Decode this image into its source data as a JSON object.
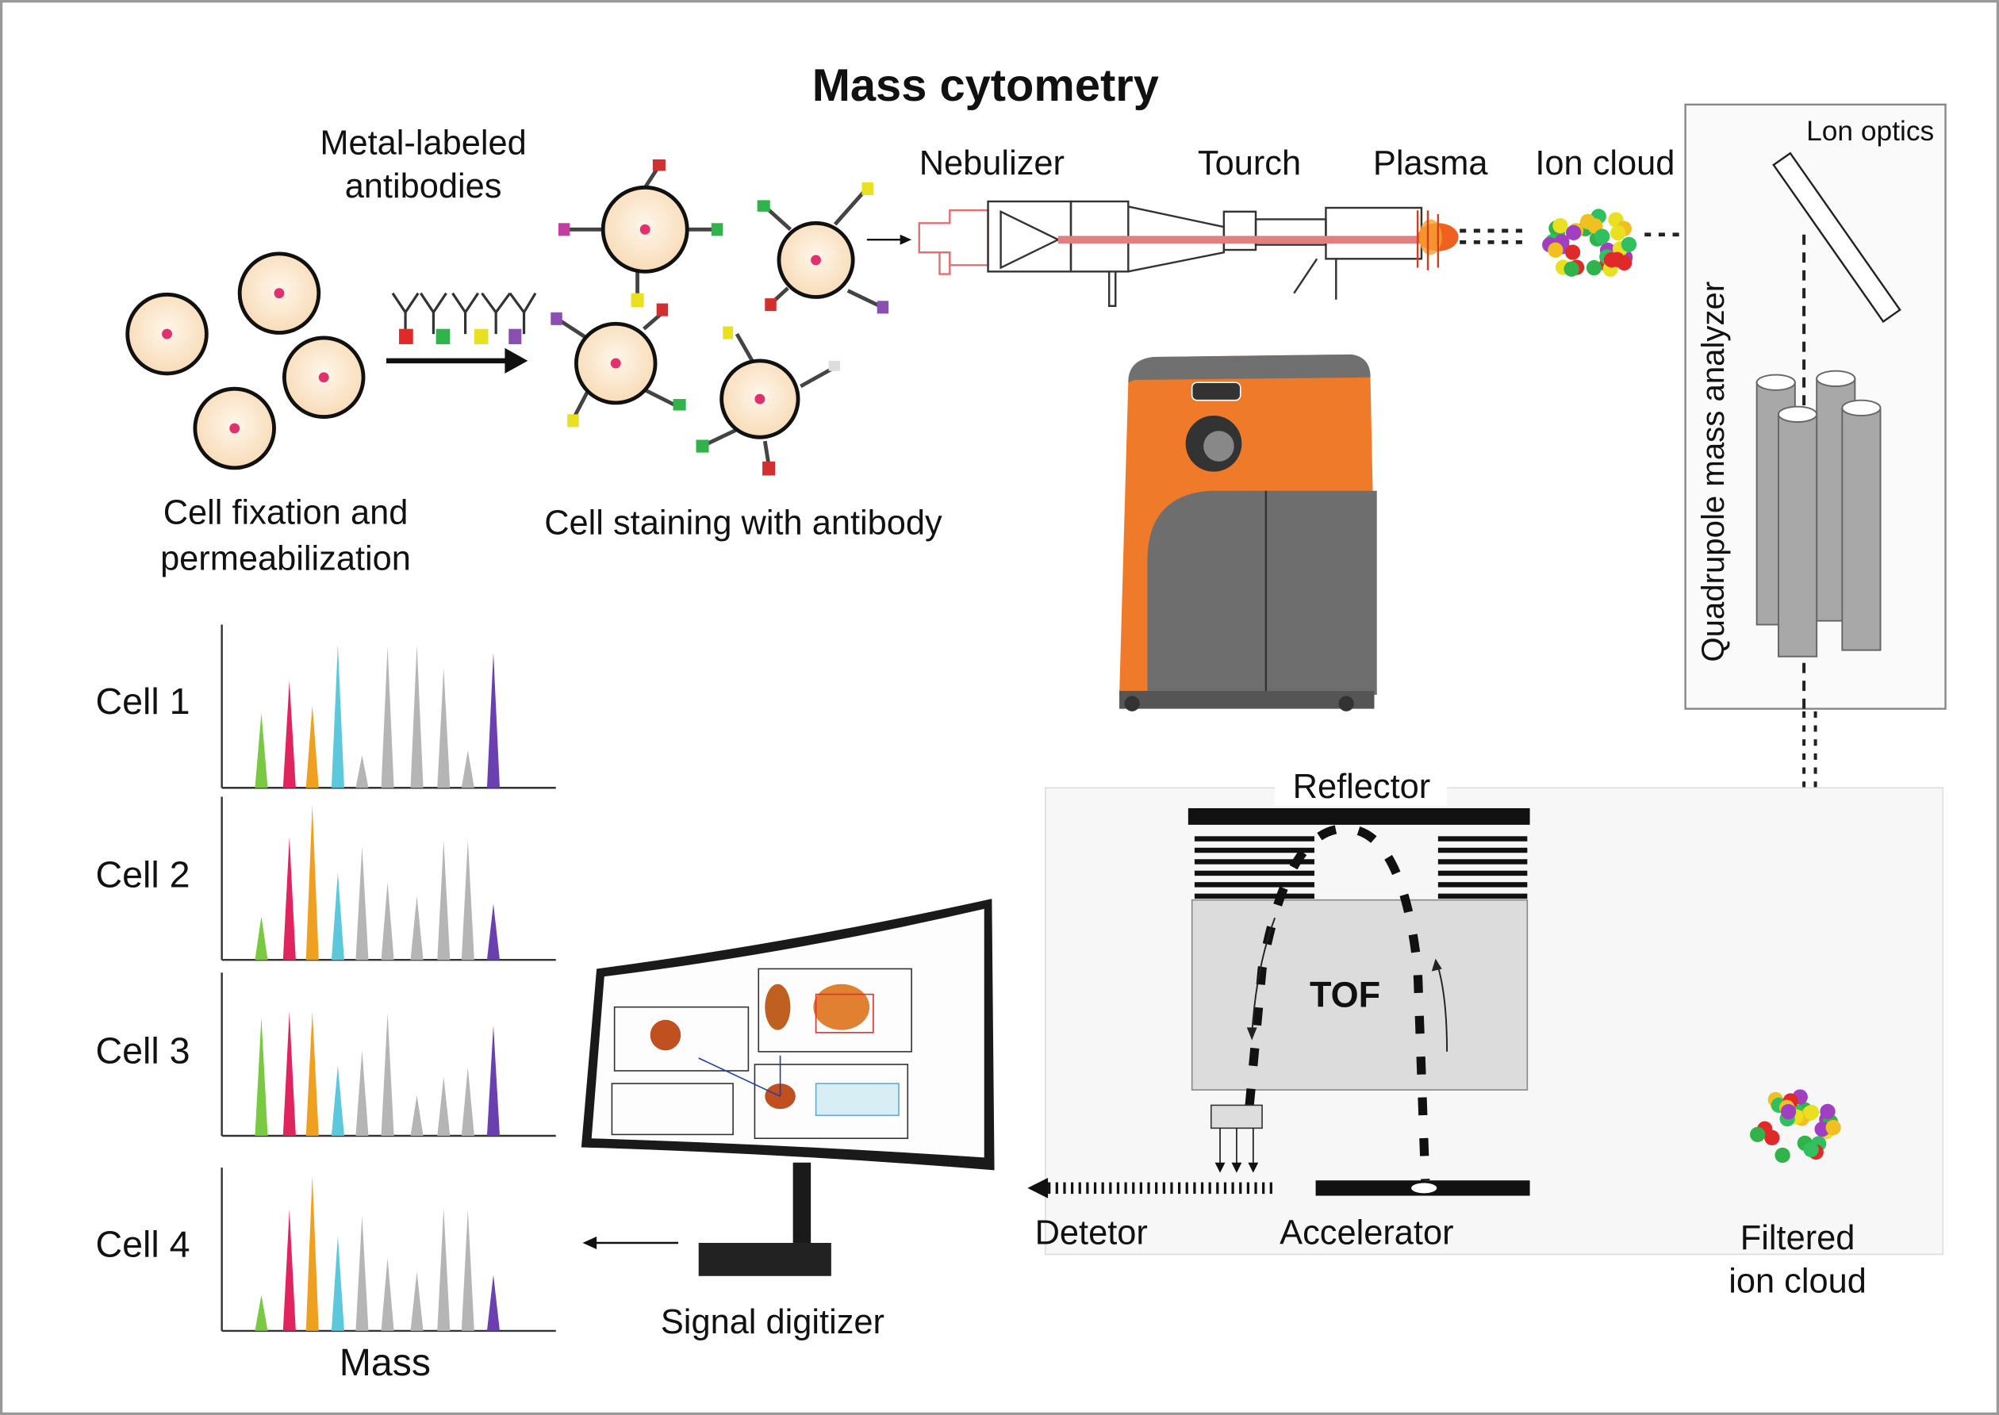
{
  "title": "Mass cytometry",
  "sample_prep": {
    "antibody_label_line1": "Metal-labeled",
    "antibody_label_line2": "antibodies",
    "fixation_line1": "Cell fixation and",
    "fixation_line2": "permeabilization",
    "staining": "Cell staining with antibody"
  },
  "instrument": {
    "nebulizer": "Nebulizer",
    "torch": "Tourch",
    "plasma": "Plasma",
    "ion_cloud": "Ion cloud",
    "ion_optics": "Lon optics",
    "quadrupole": "Quadrupole mass analyzer"
  },
  "tof": {
    "reflector": "Reflector",
    "tof": "TOF",
    "detector": "Detetor",
    "accelerator": "Accelerator",
    "filtered_line1": "Filtered",
    "filtered_line2": "ion cloud"
  },
  "digitizer": {
    "label": "Signal digitizer"
  },
  "colors": {
    "green": "#7ac943",
    "red": "#e0245e",
    "orange": "#f0a020",
    "cyan": "#5bc8dc",
    "gray": "#b5b5b5",
    "purple": "#6a3fb0",
    "cell_fill": "#fbe2c0",
    "machine_orange": "#ee7a2a",
    "machine_gray": "#707070"
  },
  "chart_data": {
    "type": "bar",
    "title": "",
    "xlabel": "Mass",
    "ylabel": "",
    "ylim": [
      0,
      1
    ],
    "channel_colors": [
      "green",
      "red",
      "orange",
      "cyan",
      "gray",
      "gray",
      "gray",
      "gray",
      "gray",
      "purple"
    ],
    "series": [
      {
        "name": "Cell 1",
        "values": [
          0.48,
          0.69,
          0.53,
          0.92,
          0.21,
          0.91,
          0.92,
          0.77,
          0.24,
          0.87
        ]
      },
      {
        "name": "Cell 2",
        "values": [
          0.28,
          0.79,
          1.0,
          0.56,
          0.73,
          0.5,
          0.41,
          0.77,
          0.77,
          0.36
        ]
      },
      {
        "name": "Cell 3",
        "values": [
          0.76,
          0.8,
          0.8,
          0.45,
          0.55,
          0.79,
          0.26,
          0.38,
          0.44,
          0.71
        ]
      },
      {
        "name": "Cell 4",
        "values": [
          0.23,
          0.78,
          1.0,
          0.61,
          0.74,
          0.47,
          0.38,
          0.79,
          0.78,
          0.36
        ]
      }
    ]
  }
}
